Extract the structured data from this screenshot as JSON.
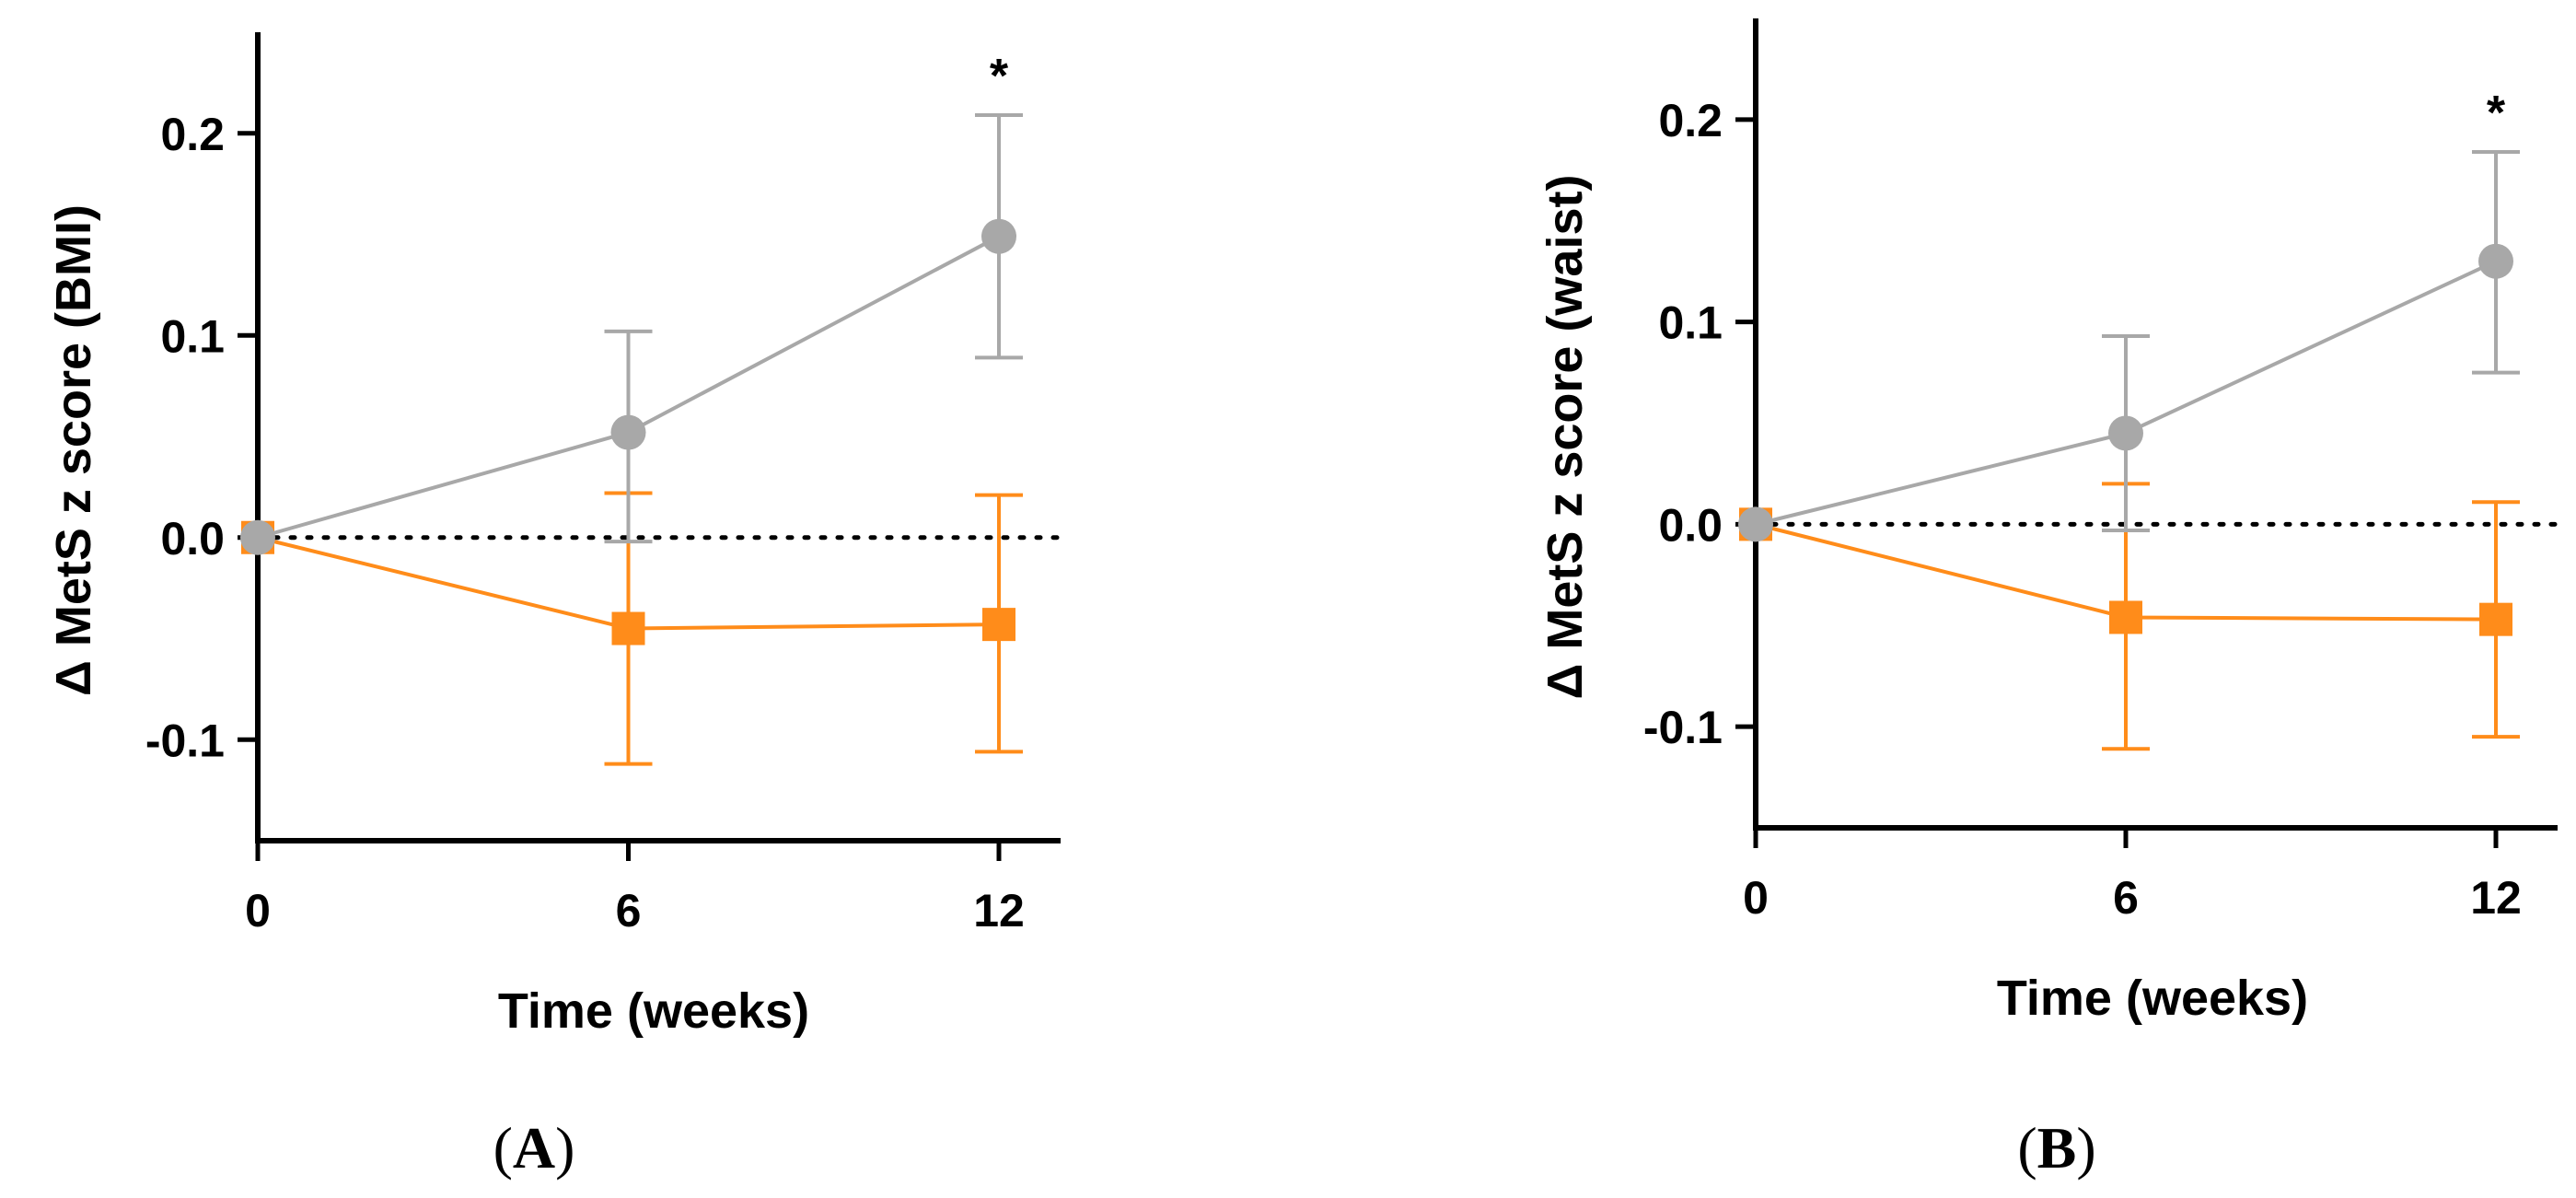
{
  "chart_data": [
    {
      "type": "line",
      "panel_label": "A",
      "xlabel": "Time (weeks)",
      "ylabel": "Δ MetS z score (BMI)",
      "x": [
        0,
        6,
        12
      ],
      "x_ticks": [
        "0",
        "6",
        "12"
      ],
      "y_ticks": [
        "0.2",
        "0.1",
        "0.0",
        "-0.1"
      ],
      "xlim": [
        0,
        13
      ],
      "ylim": [
        -0.15,
        0.25
      ],
      "reference_line": 0,
      "series": [
        {
          "name": "gray",
          "color": "#a8a8a8",
          "marker": "circle",
          "values": [
            0,
            0.052,
            0.149
          ],
          "err_low": [
            0,
            -0.002,
            0.089
          ],
          "err_high": [
            0,
            0.102,
            0.209
          ]
        },
        {
          "name": "orange",
          "color": "#ff8c1a",
          "marker": "square",
          "values": [
            0,
            -0.045,
            -0.043
          ],
          "err_low": [
            0,
            -0.112,
            -0.106
          ],
          "err_high": [
            0,
            0.022,
            0.021
          ]
        }
      ],
      "annotations": [
        {
          "text": "*",
          "x": 12
        }
      ]
    },
    {
      "type": "line",
      "panel_label": "B",
      "xlabel": "Time (weeks)",
      "ylabel": "Δ MetS z score (waist)",
      "x": [
        0,
        6,
        12
      ],
      "x_ticks": [
        "0",
        "6",
        "12"
      ],
      "y_ticks": [
        "0.2",
        "0.1",
        "0.0",
        "-0.1"
      ],
      "xlim": [
        0,
        13
      ],
      "ylim": [
        -0.15,
        0.25
      ],
      "reference_line": 0,
      "series": [
        {
          "name": "gray",
          "color": "#a8a8a8",
          "marker": "circle",
          "values": [
            0,
            0.045,
            0.13
          ],
          "err_low": [
            0,
            -0.003,
            0.075
          ],
          "err_high": [
            0,
            0.093,
            0.184
          ]
        },
        {
          "name": "orange",
          "color": "#ff8c1a",
          "marker": "square",
          "values": [
            0,
            -0.046,
            -0.047
          ],
          "err_low": [
            0,
            -0.111,
            -0.105
          ],
          "err_high": [
            0,
            0.02,
            0.011
          ]
        }
      ],
      "annotations": [
        {
          "text": "*",
          "x": 12
        }
      ]
    }
  ]
}
